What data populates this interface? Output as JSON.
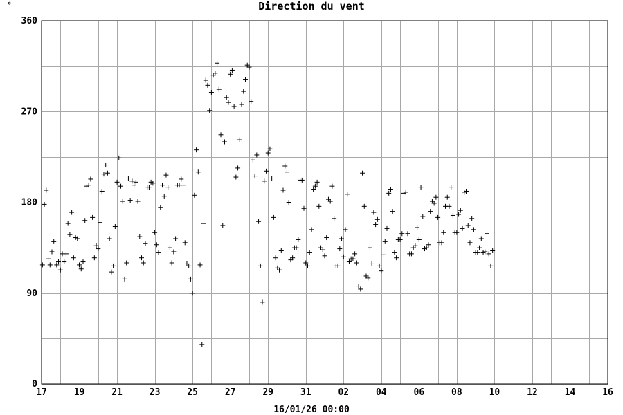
{
  "corner_mark": "°",
  "chart_data": {
    "type": "scatter",
    "title": "Direction du vent",
    "xlabel": "16/01/26 00:00",
    "ylabel": "",
    "ylim": [
      0,
      360
    ],
    "yticks": [
      0,
      90,
      180,
      270,
      360
    ],
    "y_minor_step": 45,
    "xlim": [
      0,
      30
    ],
    "x_tick_positions": [
      0,
      2,
      4,
      6,
      8,
      10,
      12,
      14,
      16,
      18,
      20,
      22,
      24,
      26,
      28,
      30
    ],
    "x_tick_labels": [
      "17",
      "19",
      "21",
      "23",
      "25",
      "27",
      "29",
      "31",
      "02",
      "04",
      "06",
      "08",
      "10",
      "12",
      "14",
      "16"
    ],
    "grid": true,
    "marker": "+",
    "series": [
      {
        "points": [
          [
            0.05,
            118
          ],
          [
            0.15,
            178
          ],
          [
            0.25,
            192
          ],
          [
            0.35,
            124
          ],
          [
            0.45,
            118
          ],
          [
            0.55,
            131
          ],
          [
            0.65,
            141
          ],
          [
            0.8,
            118
          ],
          [
            0.9,
            121
          ],
          [
            1.0,
            113
          ],
          [
            1.1,
            129
          ],
          [
            1.2,
            121
          ],
          [
            1.3,
            129
          ],
          [
            1.4,
            159
          ],
          [
            1.5,
            148
          ],
          [
            1.6,
            170
          ],
          [
            1.7,
            125
          ],
          [
            1.8,
            145
          ],
          [
            1.9,
            144
          ],
          [
            2.0,
            118
          ],
          [
            2.1,
            114
          ],
          [
            2.2,
            121
          ],
          [
            2.3,
            162
          ],
          [
            2.4,
            196
          ],
          [
            2.5,
            197
          ],
          [
            2.6,
            203
          ],
          [
            2.7,
            165
          ],
          [
            2.8,
            125
          ],
          [
            2.9,
            137
          ],
          [
            3.0,
            134
          ],
          [
            3.1,
            160
          ],
          [
            3.2,
            191
          ],
          [
            3.3,
            208
          ],
          [
            3.4,
            217
          ],
          [
            3.5,
            209
          ],
          [
            3.6,
            144
          ],
          [
            3.7,
            111
          ],
          [
            3.8,
            117
          ],
          [
            3.9,
            156
          ],
          [
            4.0,
            200
          ],
          [
            4.1,
            224
          ],
          [
            4.2,
            196
          ],
          [
            4.3,
            181
          ],
          [
            4.4,
            104
          ],
          [
            4.5,
            120
          ],
          [
            4.6,
            204
          ],
          [
            4.7,
            182
          ],
          [
            4.8,
            201
          ],
          [
            4.9,
            197
          ],
          [
            5.0,
            200
          ],
          [
            5.1,
            181
          ],
          [
            5.2,
            146
          ],
          [
            5.3,
            125
          ],
          [
            5.4,
            120
          ],
          [
            5.5,
            139
          ],
          [
            5.6,
            195
          ],
          [
            5.7,
            195
          ],
          [
            5.8,
            200
          ],
          [
            5.9,
            199
          ],
          [
            6.0,
            150
          ],
          [
            6.1,
            138
          ],
          [
            6.2,
            130
          ],
          [
            6.3,
            175
          ],
          [
            6.4,
            197
          ],
          [
            6.5,
            186
          ],
          [
            6.6,
            207
          ],
          [
            6.7,
            195
          ],
          [
            6.8,
            135
          ],
          [
            6.9,
            120
          ],
          [
            7.0,
            131
          ],
          [
            7.1,
            144
          ],
          [
            7.2,
            197
          ],
          [
            7.3,
            197
          ],
          [
            7.4,
            203
          ],
          [
            7.5,
            197
          ],
          [
            7.6,
            140
          ],
          [
            7.7,
            119
          ],
          [
            7.8,
            117
          ],
          [
            7.9,
            104
          ],
          [
            8.0,
            90
          ],
          [
            8.1,
            187
          ],
          [
            8.2,
            232
          ],
          [
            8.3,
            210
          ],
          [
            8.4,
            118
          ],
          [
            8.5,
            39
          ],
          [
            8.6,
            159
          ],
          [
            8.7,
            301
          ],
          [
            8.8,
            296
          ],
          [
            8.9,
            271
          ],
          [
            9.0,
            289
          ],
          [
            9.1,
            306
          ],
          [
            9.2,
            308
          ],
          [
            9.3,
            318
          ],
          [
            9.4,
            292
          ],
          [
            9.5,
            247
          ],
          [
            9.6,
            157
          ],
          [
            9.7,
            240
          ],
          [
            9.8,
            284
          ],
          [
            9.9,
            279
          ],
          [
            10.0,
            307
          ],
          [
            10.1,
            311
          ],
          [
            10.2,
            275
          ],
          [
            10.3,
            205
          ],
          [
            10.4,
            214
          ],
          [
            10.5,
            242
          ],
          [
            10.6,
            277
          ],
          [
            10.7,
            290
          ],
          [
            10.8,
            302
          ],
          [
            10.9,
            316
          ],
          [
            11.0,
            314
          ],
          [
            11.1,
            280
          ],
          [
            11.2,
            222
          ],
          [
            11.3,
            206
          ],
          [
            11.4,
            227
          ],
          [
            11.5,
            161
          ],
          [
            11.6,
            117
          ],
          [
            11.7,
            81
          ],
          [
            11.8,
            201
          ],
          [
            11.9,
            211
          ],
          [
            12.0,
            229
          ],
          [
            12.1,
            233
          ],
          [
            12.2,
            204
          ],
          [
            12.3,
            165
          ],
          [
            12.4,
            125
          ],
          [
            12.5,
            115
          ],
          [
            12.6,
            113
          ],
          [
            12.7,
            132
          ],
          [
            12.8,
            192
          ],
          [
            12.9,
            216
          ],
          [
            13.0,
            210
          ],
          [
            13.1,
            180
          ],
          [
            13.2,
            123
          ],
          [
            13.3,
            125
          ],
          [
            13.4,
            135
          ],
          [
            13.5,
            135
          ],
          [
            13.6,
            143
          ],
          [
            13.7,
            202
          ],
          [
            13.8,
            202
          ],
          [
            13.9,
            174
          ],
          [
            14.0,
            120
          ],
          [
            14.1,
            117
          ],
          [
            14.2,
            130
          ],
          [
            14.3,
            153
          ],
          [
            14.4,
            193
          ],
          [
            14.5,
            196
          ],
          [
            14.6,
            200
          ],
          [
            14.7,
            176
          ],
          [
            14.8,
            135
          ],
          [
            14.9,
            133
          ],
          [
            15.0,
            127
          ],
          [
            15.1,
            145
          ],
          [
            15.2,
            183
          ],
          [
            15.3,
            181
          ],
          [
            15.4,
            196
          ],
          [
            15.5,
            164
          ],
          [
            15.6,
            117
          ],
          [
            15.7,
            117
          ],
          [
            15.8,
            134
          ],
          [
            15.9,
            144
          ],
          [
            16.0,
            126
          ],
          [
            16.1,
            153
          ],
          [
            16.2,
            188
          ],
          [
            16.3,
            121
          ],
          [
            16.4,
            124
          ],
          [
            16.5,
            124
          ],
          [
            16.6,
            129
          ],
          [
            16.7,
            120
          ],
          [
            16.8,
            97
          ],
          [
            16.9,
            94
          ],
          [
            17.0,
            209
          ],
          [
            17.1,
            176
          ],
          [
            17.2,
            107
          ],
          [
            17.3,
            105
          ],
          [
            17.4,
            135
          ],
          [
            17.5,
            119
          ],
          [
            17.6,
            170
          ],
          [
            17.7,
            158
          ],
          [
            17.8,
            163
          ],
          [
            17.9,
            117
          ],
          [
            18.0,
            112
          ],
          [
            18.1,
            128
          ],
          [
            18.2,
            141
          ],
          [
            18.3,
            154
          ],
          [
            18.4,
            189
          ],
          [
            18.5,
            193
          ],
          [
            18.6,
            171
          ],
          [
            18.7,
            130
          ],
          [
            18.8,
            125
          ],
          [
            18.9,
            143
          ],
          [
            19.0,
            143
          ],
          [
            19.1,
            149
          ],
          [
            19.2,
            189
          ],
          [
            19.3,
            190
          ],
          [
            19.4,
            149
          ],
          [
            19.5,
            129
          ],
          [
            19.6,
            129
          ],
          [
            19.7,
            135
          ],
          [
            19.8,
            137
          ],
          [
            19.9,
            155
          ],
          [
            20.0,
            143
          ],
          [
            20.1,
            195
          ],
          [
            20.2,
            166
          ],
          [
            20.3,
            134
          ],
          [
            20.4,
            135
          ],
          [
            20.5,
            138
          ],
          [
            20.6,
            171
          ],
          [
            20.7,
            181
          ],
          [
            20.8,
            179
          ],
          [
            20.9,
            185
          ],
          [
            21.0,
            165
          ],
          [
            21.1,
            140
          ],
          [
            21.2,
            140
          ],
          [
            21.3,
            150
          ],
          [
            21.4,
            176
          ],
          [
            21.5,
            185
          ],
          [
            21.6,
            176
          ],
          [
            21.7,
            195
          ],
          [
            21.8,
            167
          ],
          [
            21.9,
            150
          ],
          [
            22.0,
            150
          ],
          [
            22.1,
            168
          ],
          [
            22.2,
            172
          ],
          [
            22.3,
            154
          ],
          [
            22.4,
            190
          ],
          [
            22.5,
            191
          ],
          [
            22.6,
            157
          ],
          [
            22.7,
            140
          ],
          [
            22.8,
            164
          ],
          [
            22.9,
            153
          ],
          [
            23.0,
            130
          ],
          [
            23.1,
            130
          ],
          [
            23.2,
            135
          ],
          [
            23.3,
            144
          ],
          [
            23.4,
            130
          ],
          [
            23.5,
            131
          ],
          [
            23.6,
            149
          ],
          [
            23.7,
            129
          ],
          [
            23.8,
            117
          ],
          [
            23.9,
            132
          ]
        ]
      }
    ]
  }
}
